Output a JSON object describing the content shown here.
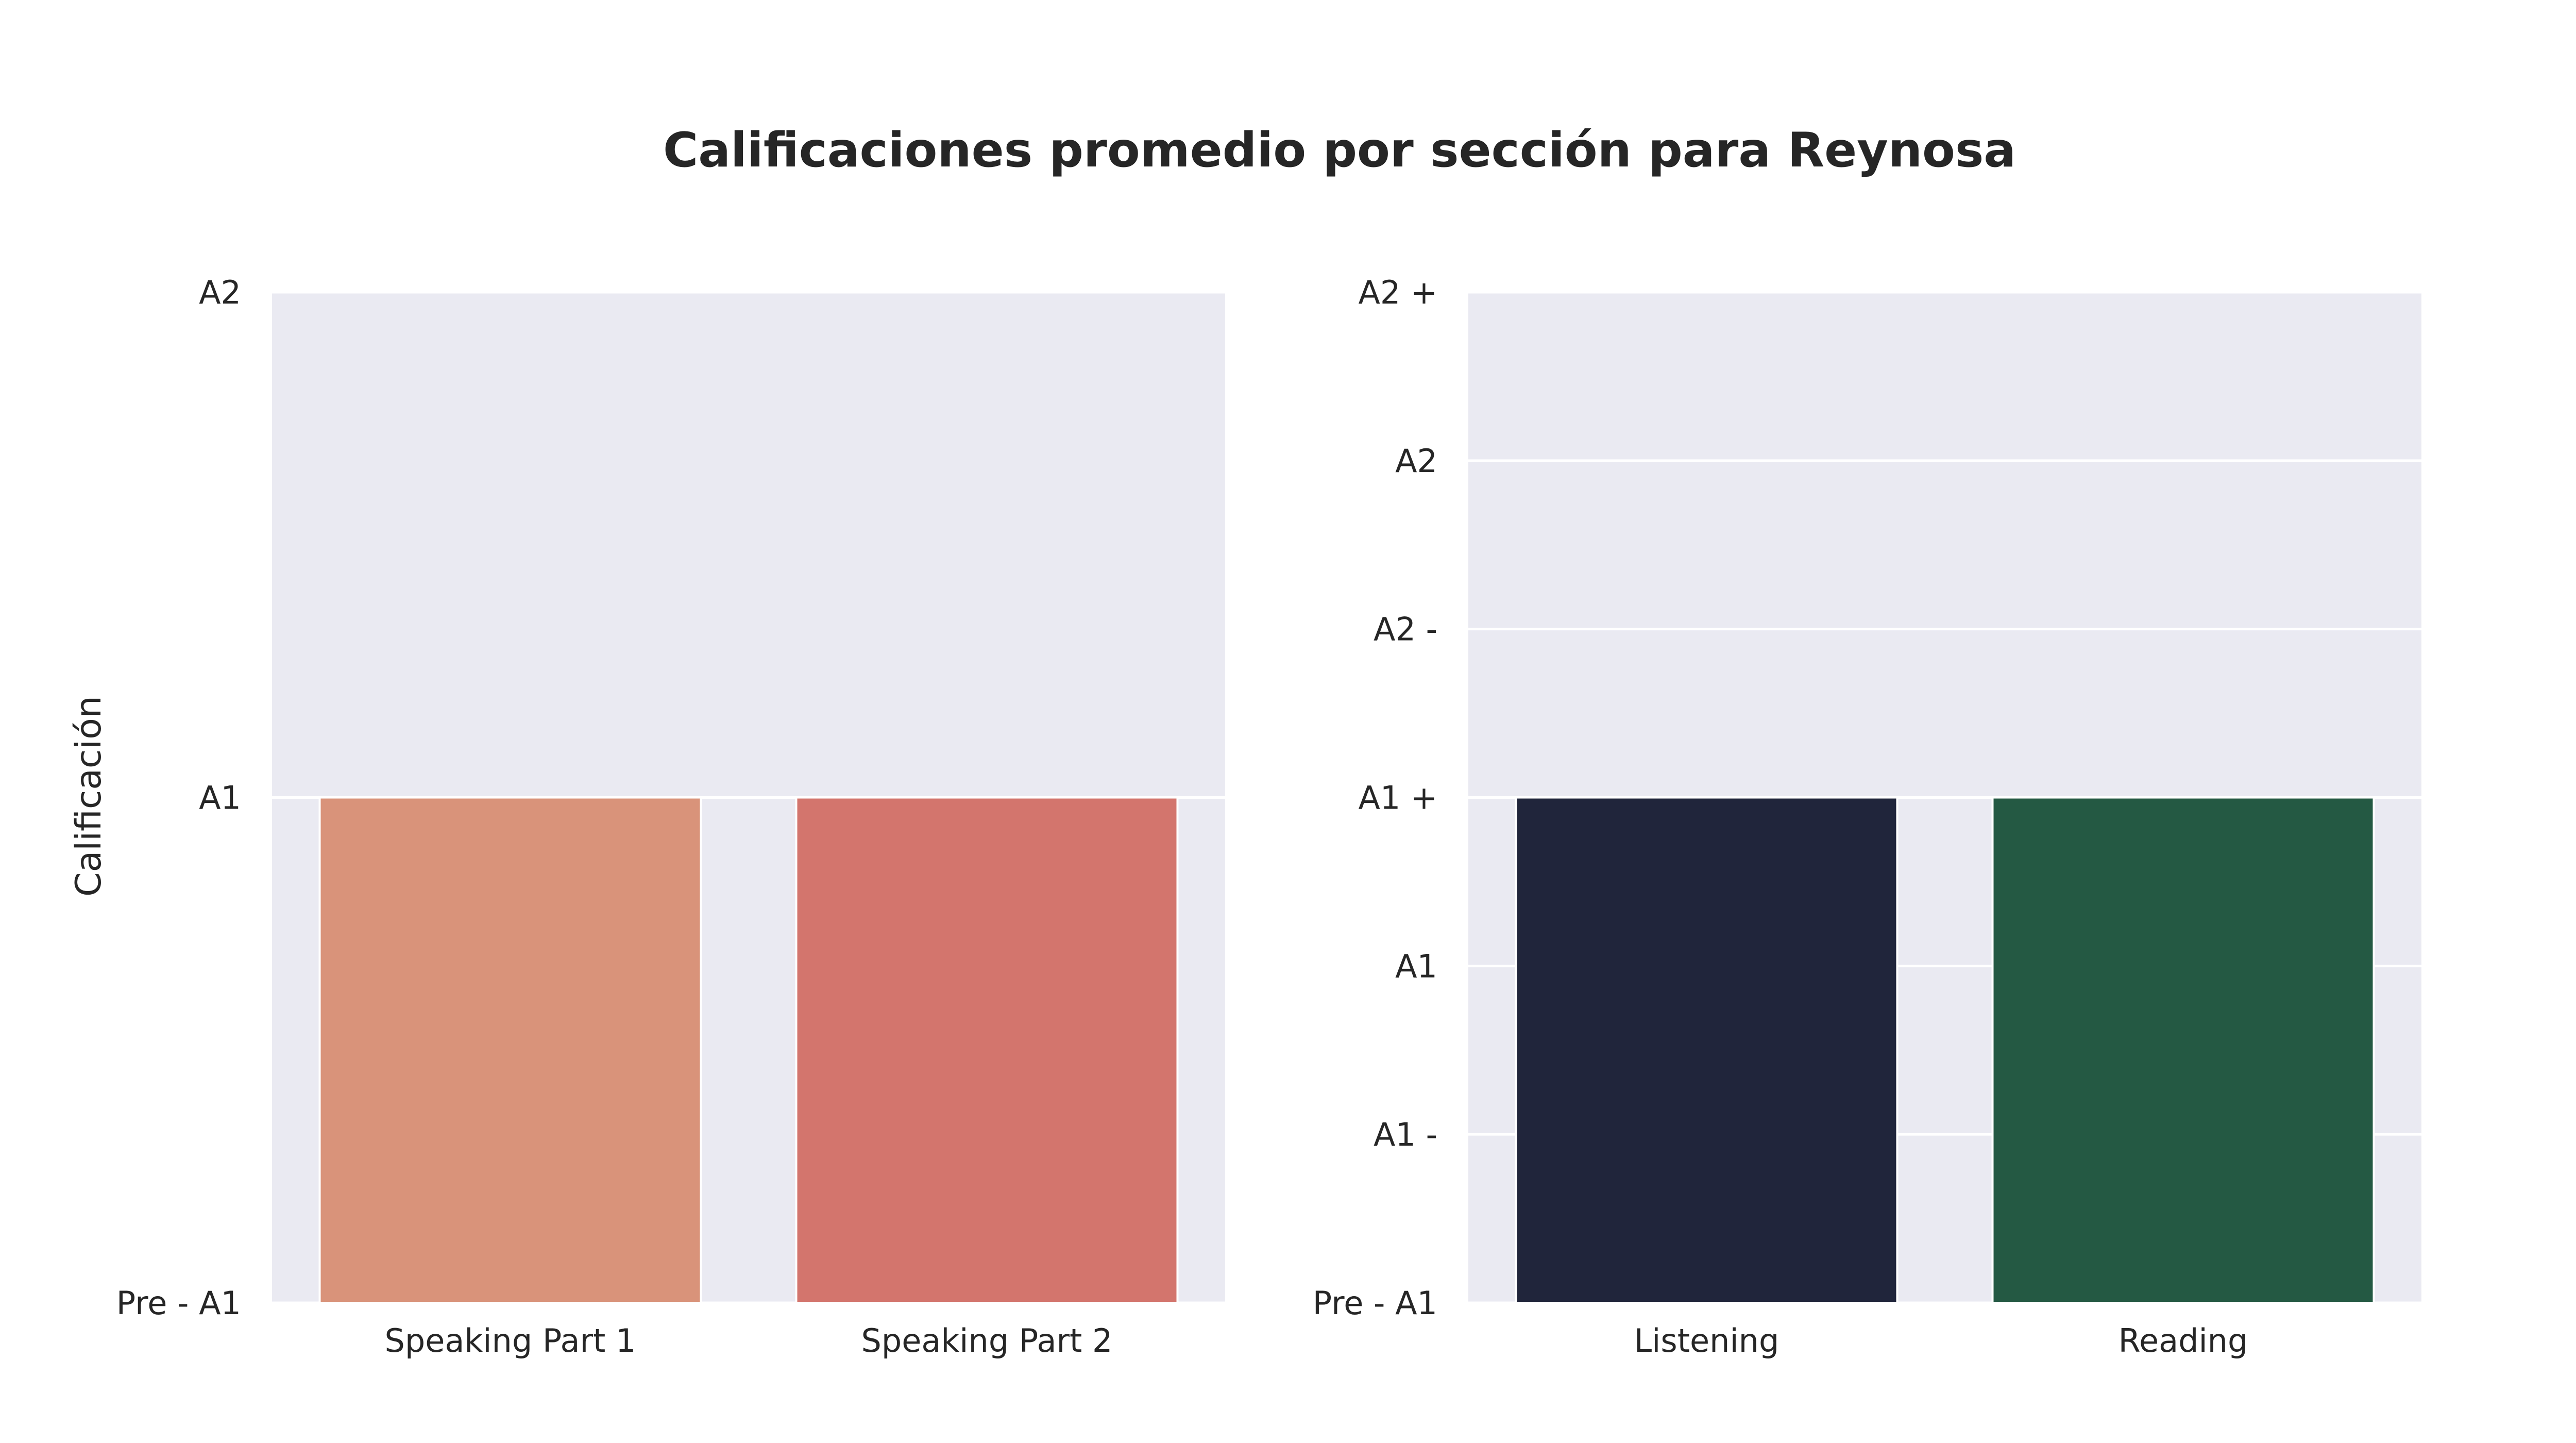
{
  "chart_data": [
    {
      "type": "bar",
      "title": "Calificaciones promedio por sección para Reynosa",
      "ylabel": "Calificación",
      "xlabel": "",
      "categories": [
        "Speaking Part 1",
        "Speaking Part 2"
      ],
      "values": [
        1,
        1
      ],
      "colors": [
        "#d9937a",
        "#d3756d"
      ],
      "ylim": [
        0,
        2
      ],
      "yticks": [
        0,
        1,
        2
      ],
      "yticklabels": [
        "Pre - A1",
        "A1",
        "A2"
      ],
      "grid": true
    },
    {
      "type": "bar",
      "ylabel": "",
      "xlabel": "",
      "categories": [
        "Listening",
        "Reading"
      ],
      "values": [
        3,
        3
      ],
      "colors": [
        "#20253b",
        "#245943"
      ],
      "ylim": [
        0,
        6
      ],
      "yticks": [
        0,
        1,
        2,
        3,
        4,
        5,
        6
      ],
      "yticklabels": [
        "Pre - A1",
        "A1 -",
        "A1",
        "A1 +",
        "A2 -",
        "A2",
        "A2 +"
      ],
      "grid": true
    }
  ],
  "figure": {
    "title": "Calificaciones promedio por sección para Reynosa",
    "background": "#ffffff",
    "panel_background": "#eaeaf2",
    "grid_color": "#ffffff",
    "text_color": "#262626"
  }
}
